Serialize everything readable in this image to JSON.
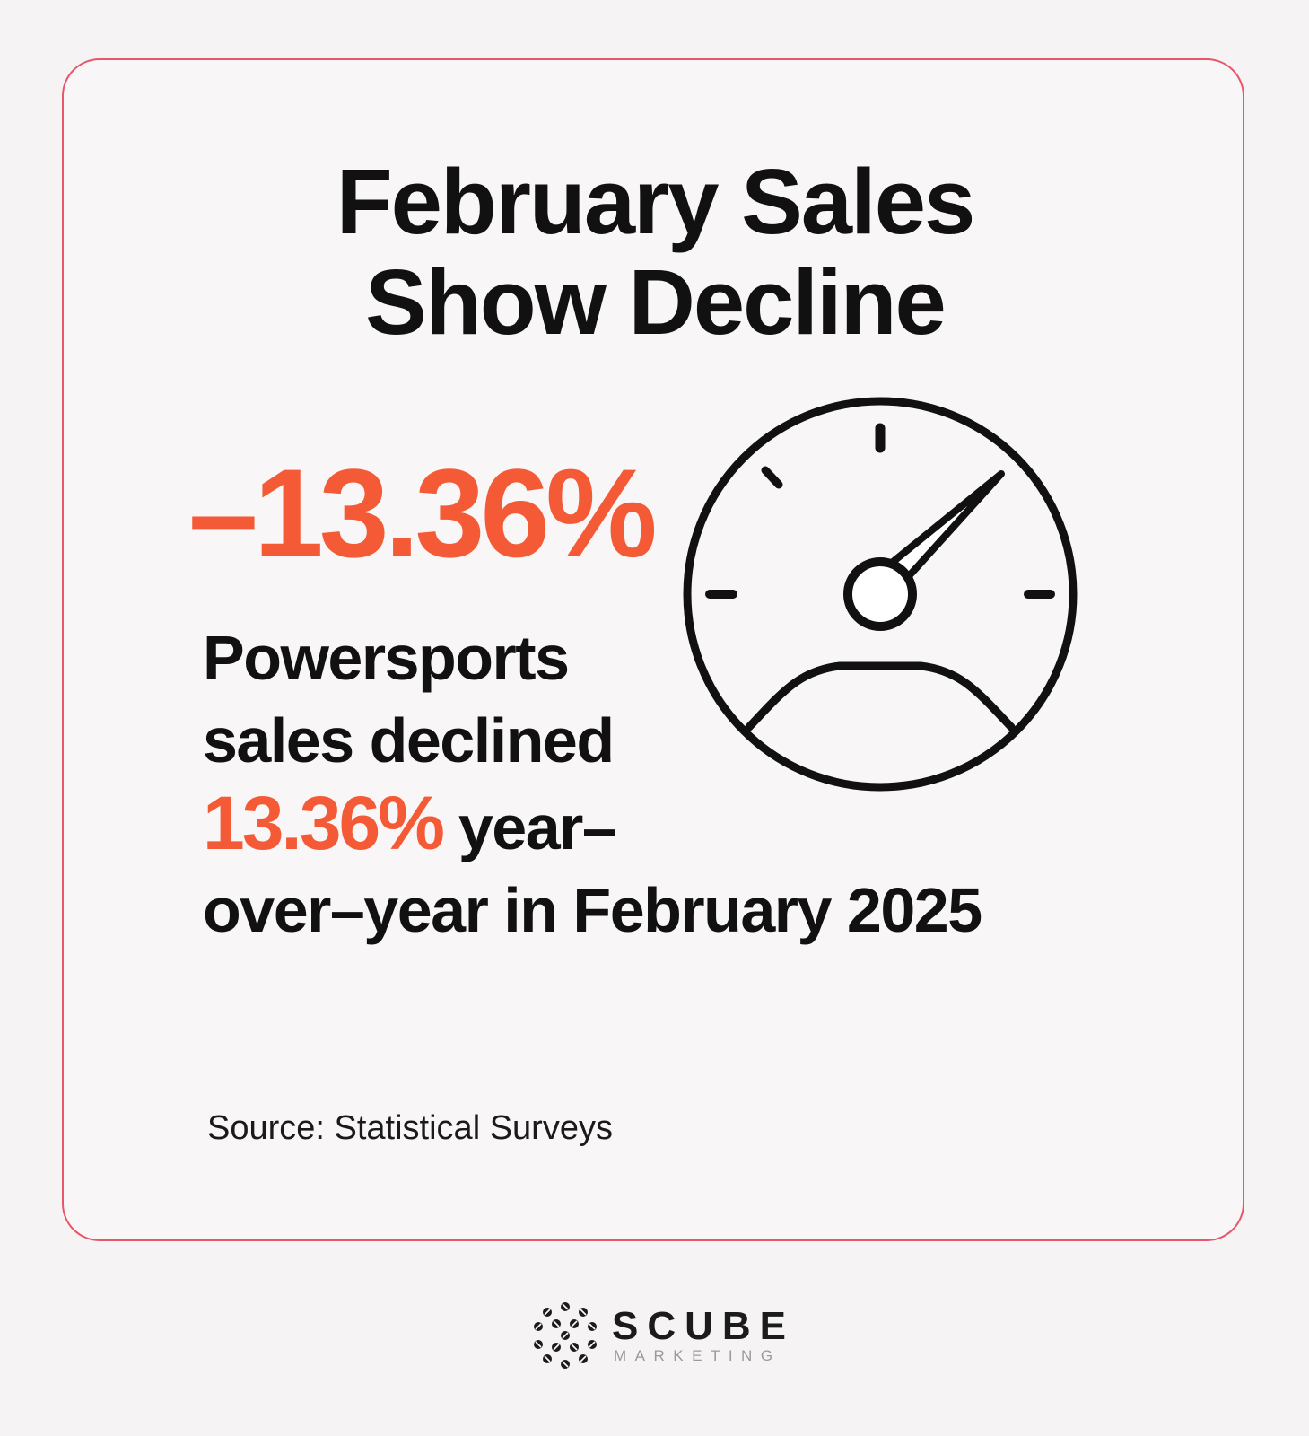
{
  "card": {
    "title_line1": "February Sales",
    "title_line2": "Show Decline",
    "headline_stat": "–13.36%",
    "body_line1": "Powersports",
    "body_line2": "sales declined",
    "body_stat": "13.36%",
    "body_line3_rest": " year–",
    "body_line4": "over–year in February 2025",
    "gauge_icon": "speedometer-icon",
    "source": "Source: Statistical Surveys"
  },
  "brand": {
    "name": "SCUBE",
    "subtitle": "MARKETING",
    "logo_icon": "scube-logo-icon"
  },
  "colors": {
    "accent": "#f45a35",
    "border": "#e8566c",
    "text": "#111111",
    "background": "#f5f3f4"
  }
}
